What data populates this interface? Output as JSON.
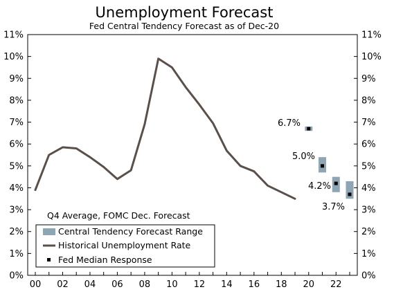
{
  "chart_data": {
    "type": "line",
    "title": "Unemployment Forecast",
    "subtitle": "Fed Central Tendency Forecast as of Dec-20",
    "ylim": [
      0,
      11
    ],
    "y_ticks": [
      "0%",
      "1%",
      "2%",
      "3%",
      "4%",
      "5%",
      "6%",
      "7%",
      "8%",
      "9%",
      "10%",
      "11%"
    ],
    "x_range": [
      2000,
      2023
    ],
    "x_ticks": [
      {
        "year": 2000,
        "label": "00"
      },
      {
        "year": 2002,
        "label": "02"
      },
      {
        "year": 2004,
        "label": "04"
      },
      {
        "year": 2006,
        "label": "06"
      },
      {
        "year": 2008,
        "label": "08"
      },
      {
        "year": 2010,
        "label": "10"
      },
      {
        "year": 2012,
        "label": "12"
      },
      {
        "year": 2014,
        "label": "14"
      },
      {
        "year": 2016,
        "label": "16"
      },
      {
        "year": 2018,
        "label": "18"
      },
      {
        "year": 2020,
        "label": "20"
      },
      {
        "year": 2022,
        "label": "22"
      }
    ],
    "historical": {
      "name": "Historical Unemployment Rate",
      "color": "#5a4f49",
      "x": [
        2000,
        2001,
        2002,
        2003,
        2004,
        2005,
        2006,
        2007,
        2008,
        2009,
        2010,
        2011,
        2012,
        2013,
        2014,
        2015,
        2016,
        2017,
        2018,
        2019
      ],
      "y": [
        3.9,
        5.5,
        5.85,
        5.8,
        5.4,
        4.95,
        4.4,
        4.8,
        6.9,
        9.9,
        9.5,
        8.6,
        7.8,
        6.95,
        5.7,
        5.0,
        4.75,
        4.1,
        3.8,
        3.5
      ]
    },
    "forecast_range": {
      "name": "Central Tendency Forecast Range",
      "color": "#8ea6b4",
      "x": [
        2020,
        2021,
        2022,
        2023
      ],
      "low": [
        6.6,
        4.7,
        3.8,
        3.5
      ],
      "high": [
        6.8,
        5.4,
        4.5,
        4.3
      ]
    },
    "median": {
      "name": "Fed Median Response",
      "color": "#000000",
      "x": [
        2020,
        2021,
        2022,
        2023
      ],
      "y": [
        6.7,
        5.0,
        4.2,
        3.7
      ]
    },
    "annotations": [
      "6.7%",
      "5.0%",
      "4.2%",
      "3.7%"
    ],
    "legend": {
      "placement": "bottom-left",
      "heading": "Q4 Average, FOMC Dec. Forecast",
      "items": [
        "Central Tendency Forecast Range",
        "Historical Unemployment Rate",
        "Fed Median Response"
      ]
    }
  }
}
